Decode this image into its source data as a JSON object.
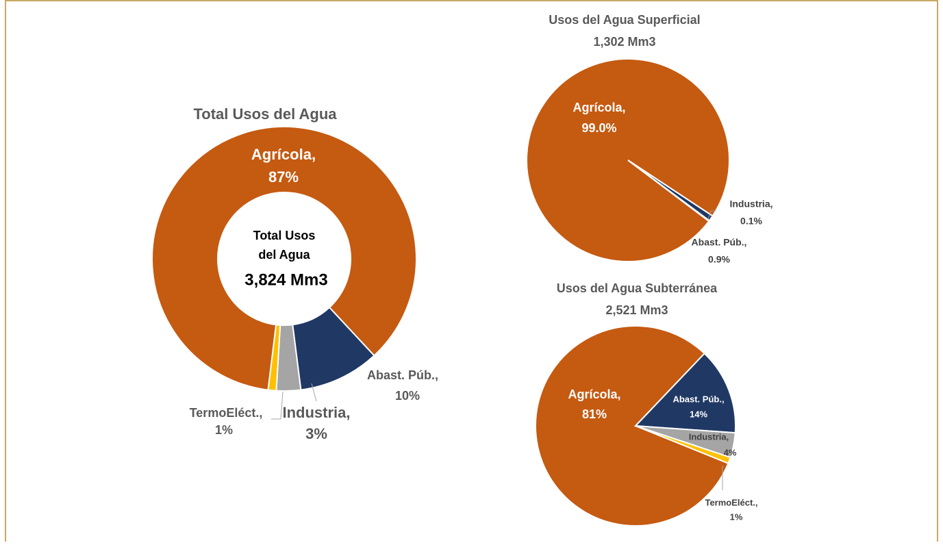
{
  "chart_data": [
    {
      "type": "donut",
      "title": "Total Usos del Agua",
      "center_label": "Total Usos del Agua",
      "center_value": "3,824 Mm3",
      "categories": [
        "Agrícola,",
        "Abast. Púb.,",
        "Industria,",
        "TermoEléct.,"
      ],
      "values": [
        87,
        10,
        3,
        1
      ],
      "value_labels": [
        "87%",
        "10%",
        "3%",
        "1%"
      ],
      "colors": [
        "#c55a11",
        "#203864",
        "#a5a5a5",
        "#ffc000"
      ]
    },
    {
      "type": "pie",
      "title": "Usos del Agua Superficial",
      "subtitle": "1,302 Mm3",
      "categories": [
        "Agrícola,",
        "Abast. Púb.,",
        "Industria,"
      ],
      "values": [
        99.0,
        0.9,
        0.1
      ],
      "value_labels": [
        "99.0%",
        "0.9%",
        "0.1%"
      ],
      "colors": [
        "#c55a11",
        "#203864",
        "#a5a5a5"
      ]
    },
    {
      "type": "pie",
      "title": "Usos del Agua Subterránea",
      "subtitle": "2,521 Mm3",
      "categories": [
        "Agrícola,",
        "Abast. Púb.,",
        "Industria,",
        "TermoEléct.,"
      ],
      "values": [
        81,
        14,
        4,
        1
      ],
      "value_labels": [
        "81%",
        "14%",
        "4%",
        "1%"
      ],
      "colors": [
        "#c55a11",
        "#203864",
        "#a5a5a5",
        "#ffc000"
      ]
    }
  ]
}
